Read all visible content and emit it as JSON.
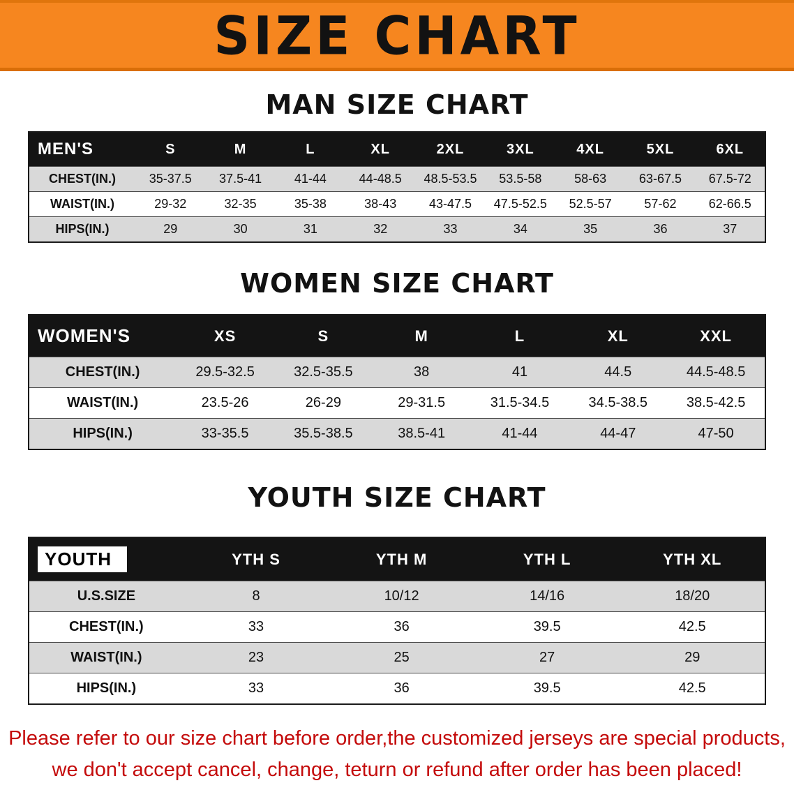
{
  "banner": {
    "title": "SIZE CHART"
  },
  "colors": {
    "banner_bg": "#f6861f",
    "table_header_bg": "#141414",
    "row_shade": "#d9d9d9",
    "footer_text": "#c40b0b"
  },
  "tables": {
    "men": {
      "heading": "MAN SIZE CHART",
      "header": [
        "MEN'S",
        "S",
        "M",
        "L",
        "XL",
        "2XL",
        "3XL",
        "4XL",
        "5XL",
        "6XL"
      ],
      "rows": [
        {
          "label": "CHEST(IN.)",
          "values": [
            "35-37.5",
            "37.5-41",
            "41-44",
            "44-48.5",
            "48.5-53.5",
            "53.5-58",
            "58-63",
            "63-67.5",
            "67.5-72"
          ]
        },
        {
          "label": "WAIST(IN.)",
          "values": [
            "29-32",
            "32-35",
            "35-38",
            "38-43",
            "43-47.5",
            "47.5-52.5",
            "52.5-57",
            "57-62",
            "62-66.5"
          ]
        },
        {
          "label": "HIPS(IN.)",
          "values": [
            "29",
            "30",
            "31",
            "32",
            "33",
            "34",
            "35",
            "36",
            "37"
          ]
        }
      ]
    },
    "women": {
      "heading": "WOMEN SIZE CHART",
      "header": [
        "WOMEN'S",
        "XS",
        "S",
        "M",
        "L",
        "XL",
        "XXL"
      ],
      "rows": [
        {
          "label": "CHEST(IN.)",
          "values": [
            "29.5-32.5",
            "32.5-35.5",
            "38",
            "41",
            "44.5",
            "44.5-48.5"
          ]
        },
        {
          "label": "WAIST(IN.)",
          "values": [
            "23.5-26",
            "26-29",
            "29-31.5",
            "31.5-34.5",
            "34.5-38.5",
            "38.5-42.5"
          ]
        },
        {
          "label": "HIPS(IN.)",
          "values": [
            "33-35.5",
            "35.5-38.5",
            "38.5-41",
            "41-44",
            "44-47",
            "47-50"
          ]
        }
      ]
    },
    "youth": {
      "heading": "YOUTH SIZE CHART",
      "header": [
        "YOUTH",
        "YTH S",
        "YTH M",
        "YTH L",
        "YTH XL"
      ],
      "rows": [
        {
          "label": "U.S.SIZE",
          "values": [
            "8",
            "10/12",
            "14/16",
            "18/20"
          ]
        },
        {
          "label": "CHEST(IN.)",
          "values": [
            "33",
            "36",
            "39.5",
            "42.5"
          ]
        },
        {
          "label": "WAIST(IN.)",
          "values": [
            "23",
            "25",
            "27",
            "29"
          ]
        },
        {
          "label": "HIPS(IN.)",
          "values": [
            "33",
            "36",
            "39.5",
            "42.5"
          ]
        }
      ]
    }
  },
  "footer": {
    "line1": "Please refer to our size chart before order,the customized jerseys are special products,",
    "line2": "we don't accept cancel, change, teturn or refund after order has been placed!"
  }
}
